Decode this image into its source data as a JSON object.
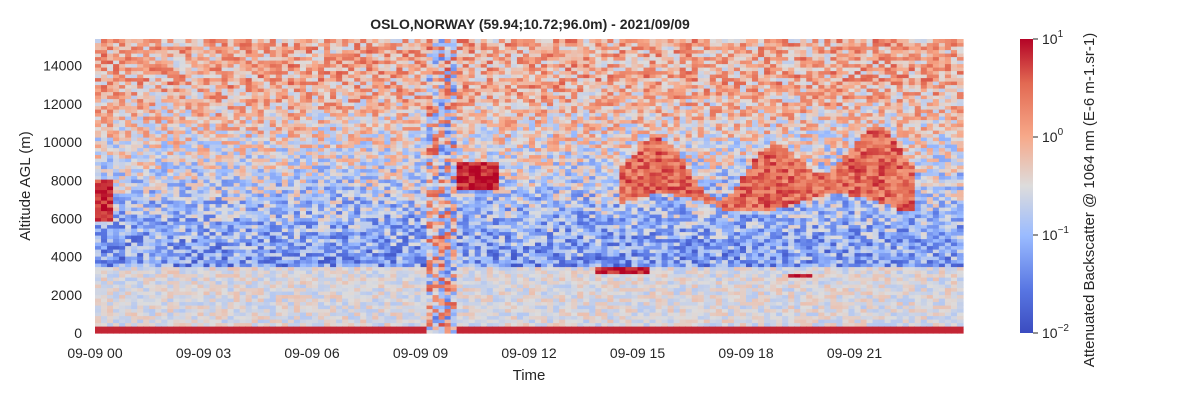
{
  "chart_data": {
    "type": "heatmap",
    "title": "OSLO,NORWAY (59.94;10.72;96.0m) - 2021/09/09",
    "xlabel": "Time",
    "ylabel": "Altitude AGL (m)",
    "x_ticks": [
      "09-09 00",
      "09-09 03",
      "09-09 06",
      "09-09 09",
      "09-09 12",
      "09-09 15",
      "09-09 18",
      "09-09 21"
    ],
    "x_tick_hours": [
      0,
      3,
      6,
      9,
      12,
      15,
      18,
      21
    ],
    "xlim_hours": [
      0,
      24
    ],
    "y_ticks": [
      0,
      2000,
      4000,
      6000,
      8000,
      10000,
      12000,
      14000
    ],
    "ylim": [
      0,
      15400
    ],
    "colorbar": {
      "label": "Attenuated Backscatter @ 1064 nm (E-6 m-1.sr-1)",
      "scale": "log",
      "range": [
        0.01,
        10
      ],
      "ticks": [
        {
          "base": "10",
          "exp": "1",
          "value": 10
        },
        {
          "base": "10",
          "exp": "0",
          "value": 1
        },
        {
          "base": "10",
          "exp": "−1",
          "value": 0.1
        },
        {
          "base": "10",
          "exp": "−2",
          "value": 0.01
        }
      ],
      "colormap": "coolwarm"
    },
    "features": [
      {
        "name": "aerosol-layer",
        "t": [
          0,
          24
        ],
        "alt": [
          0,
          3500
        ],
        "value": 0.3
      },
      {
        "name": "cloud-early",
        "t": [
          0,
          0.55
        ],
        "alt": [
          5800,
          8000
        ],
        "value": 6
      },
      {
        "name": "cloud-morning",
        "t": [
          10.0,
          11.2
        ],
        "alt": [
          7600,
          9000
        ],
        "value": 8
      },
      {
        "name": "cirrus-afternoon",
        "t": [
          14.5,
          22.7
        ],
        "alt": [
          6500,
          11800
        ],
        "value": 3
      },
      {
        "name": "low-layer-1",
        "t": [
          13.9,
          15.3
        ],
        "alt": [
          3200,
          3500
        ],
        "value": 9
      },
      {
        "name": "low-layer-2",
        "t": [
          19.1,
          19.8
        ],
        "alt": [
          2900,
          3100
        ],
        "value": 9
      },
      {
        "name": "data-gap",
        "t": [
          9.2,
          10.0
        ],
        "alt": [
          0,
          15400
        ],
        "value": null
      }
    ]
  }
}
